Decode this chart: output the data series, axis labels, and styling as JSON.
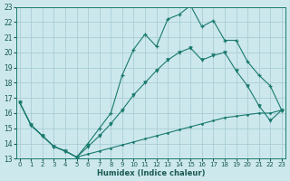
{
  "bg_color": "#cce8ed",
  "grid_color": "#aacdd6",
  "line_color": "#1a7a6e",
  "xlabel": "Humidex (Indice chaleur)",
  "xlim_min": 0,
  "xlim_max": 23,
  "ylim_min": 13,
  "ylim_max": 23,
  "xticks": [
    0,
    1,
    2,
    3,
    4,
    5,
    6,
    7,
    8,
    9,
    10,
    11,
    12,
    13,
    14,
    15,
    16,
    17,
    18,
    19,
    20,
    21,
    22,
    23
  ],
  "yticks": [
    13,
    14,
    15,
    16,
    17,
    18,
    19,
    20,
    21,
    22,
    23
  ],
  "curve_top_x": [
    0,
    1,
    2,
    3,
    4,
    5,
    6,
    7,
    8,
    9,
    10,
    11,
    12,
    13,
    14,
    15,
    16,
    17,
    18,
    19,
    20,
    21,
    22,
    23
  ],
  "curve_top_y": [
    16.7,
    15.2,
    14.5,
    13.8,
    13.5,
    13.1,
    14.0,
    15.0,
    16.0,
    18.5,
    20.2,
    21.2,
    20.4,
    22.2,
    22.5,
    23.1,
    21.7,
    22.1,
    20.8,
    20.8,
    19.4,
    18.5,
    17.8,
    16.2
  ],
  "curve_mid_x": [
    0,
    1,
    2,
    3,
    4,
    5,
    6,
    7,
    8,
    9,
    10,
    11,
    12,
    13,
    14,
    15,
    16,
    17,
    18,
    19,
    20,
    21,
    22,
    23
  ],
  "curve_mid_y": [
    16.7,
    15.2,
    14.5,
    13.8,
    13.5,
    13.1,
    13.8,
    14.5,
    15.3,
    16.2,
    17.2,
    18.0,
    18.8,
    19.5,
    20.0,
    20.3,
    19.5,
    19.8,
    20.0,
    18.8,
    17.8,
    16.5,
    15.5,
    16.2
  ],
  "curve_bot_x": [
    0,
    1,
    2,
    3,
    4,
    5,
    6,
    7,
    8,
    9,
    10,
    11,
    12,
    13,
    14,
    15,
    16,
    17,
    18,
    19,
    20,
    21,
    22,
    23
  ],
  "curve_bot_y": [
    16.7,
    15.2,
    14.5,
    13.8,
    13.5,
    13.1,
    13.3,
    13.5,
    13.7,
    13.9,
    14.1,
    14.3,
    14.5,
    14.7,
    14.9,
    15.1,
    15.3,
    15.5,
    15.7,
    15.8,
    15.9,
    16.0,
    16.0,
    16.2
  ]
}
